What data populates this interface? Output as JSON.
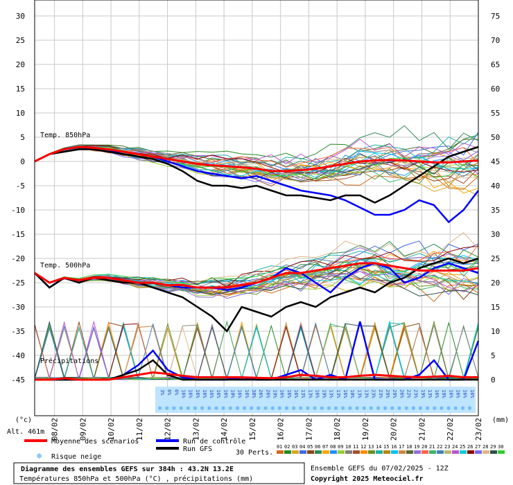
{
  "chart_data": {
    "type": "line",
    "title": "Diagramme des ensembles GEFS sur 384h : 43.2N 13.2E",
    "subtitle": "Températures 850hPa et 500hPa (°C) , précipitations (mm)",
    "run_info": "Ensemble GEFS du 07/02/2025 - 12Z",
    "copyright": "Copyright 2025 Meteociel.fr",
    "altitude": "Alt. 461m",
    "left_unit": "(°c)",
    "right_unit": "(mm)",
    "section_labels": {
      "t850": "Temp. 850hPa",
      "t500": "Temp. 500hPa",
      "precip": "Précipitations"
    },
    "y_left_ticks": [
      "30",
      "25",
      "20",
      "15",
      "10",
      "5",
      "0",
      "-5",
      "-10",
      "-15",
      "-20",
      "-25",
      "-30",
      "-35",
      "-40",
      "-45"
    ],
    "y_right_ticks": [
      "75",
      "70",
      "65",
      "60",
      "55",
      "50",
      "45",
      "40",
      "35",
      "30",
      "25",
      "20",
      "15",
      "10",
      "5",
      "0"
    ],
    "ylim": [
      -45,
      30
    ],
    "grid": true,
    "x_day_labels": [
      "08/02",
      "09/02",
      "10/02",
      "11/02",
      "12/02",
      "13/02",
      "14/02",
      "15/02",
      "16/02",
      "17/02",
      "18/02",
      "19/02",
      "20/02",
      "21/02",
      "22/02",
      "23/02"
    ],
    "snow_risk_pct": [
      "3%",
      "6%",
      "6%",
      "16%",
      "16%",
      "16%",
      "16%",
      "16%",
      "16%",
      "16%",
      "10%",
      "16%",
      "16%",
      "38%",
      "26%",
      "26%",
      "19%",
      "16%",
      "16%",
      "16%",
      "13%",
      "13%",
      "16%",
      "19%",
      "13%",
      "13%",
      "16%",
      "10%",
      "13%",
      "13%",
      "23%",
      "23%",
      "29%",
      "29%",
      "26%",
      "22%",
      "23%",
      "19%",
      "13%",
      "16%",
      "19%",
      "16%",
      "16%",
      "16%",
      "16%"
    ],
    "legend": {
      "mean": "Moyenne des scénarios",
      "control": "Run de contrôle",
      "gfs": "Run GFS",
      "snow": "Risque neige",
      "perts_label": "30 Perts.",
      "perts_ids": [
        "01",
        "02",
        "03",
        "04",
        "05",
        "06",
        "07",
        "08",
        "09",
        "10",
        "11",
        "12",
        "13",
        "14",
        "15",
        "16",
        "17",
        "18",
        "19",
        "20",
        "21",
        "22",
        "23",
        "24",
        "25",
        "26",
        "27",
        "28",
        "29",
        "30"
      ]
    },
    "colors": {
      "mean": "#ff0000",
      "control": "#0000ff",
      "gfs": "#000000",
      "snow": "#3aa0ff",
      "perts": [
        "#d2691e",
        "#228b22",
        "#daa520",
        "#4169e1",
        "#8b4513",
        "#2e8b57",
        "#ffa500",
        "#1e90ff",
        "#9acd32",
        "#808080",
        "#a0522d",
        "#ff8c00",
        "#6b8e23",
        "#20b2aa",
        "#b8860b",
        "#00bfff",
        "#cd853f",
        "#556b2f",
        "#9370db",
        "#ff6347",
        "#3cb371",
        "#4682b4",
        "#bdb76b",
        "#ba55d3",
        "#00ced1",
        "#8b0000",
        "#7b68ee",
        "#deb887",
        "#2f4f4f",
        "#32cd32"
      ]
    },
    "series": [
      {
        "name": "Moyenne des scénarios",
        "role": "t850",
        "values": [
          0,
          1.5,
          2.5,
          3,
          2.8,
          2.5,
          2,
          1.5,
          1,
          0.5,
          0,
          -0.5,
          -0.8,
          -1,
          -1.2,
          -1.5,
          -2,
          -2,
          -1.8,
          -1.5,
          -1,
          -0.5,
          0,
          0.2,
          0.3,
          0.2,
          0,
          -0.2,
          -0.2,
          0,
          0.2
        ]
      },
      {
        "name": "Run de contrôle",
        "role": "t850",
        "values": [
          0,
          1.5,
          2.5,
          3,
          2.5,
          2,
          2,
          1.5,
          1,
          0,
          -1,
          -2,
          -2.5,
          -3,
          -3.5,
          -3,
          -4,
          -5,
          -6,
          -6.5,
          -7,
          -8,
          -9.5,
          -11,
          -11,
          -10,
          -8,
          -9,
          -12.5,
          -10,
          -6
        ]
      },
      {
        "name": "Run GFS",
        "role": "t850",
        "values": [
          0,
          1.5,
          2,
          2.5,
          2.5,
          2,
          1.5,
          1,
          0.5,
          -0.5,
          -2,
          -4,
          -5,
          -5,
          -5.5,
          -5,
          -6,
          -7,
          -7,
          -7.5,
          -8,
          -7,
          -7,
          -8.5,
          -7,
          -5,
          -3,
          -1,
          1,
          2,
          3
        ]
      },
      {
        "name": "Moyenne des scénarios",
        "role": "t500",
        "values": [
          -23,
          -25,
          -24,
          -24.5,
          -24,
          -24,
          -24.5,
          -25,
          -25,
          -25.5,
          -25.5,
          -26,
          -26,
          -26,
          -25.5,
          -25,
          -24,
          -23,
          -23,
          -22.5,
          -22,
          -21.5,
          -21,
          -21,
          -21.5,
          -22,
          -22.5,
          -22.5,
          -22.5,
          -22.5,
          -22
        ]
      },
      {
        "name": "Run de contrôle",
        "role": "t500",
        "values": [
          -23,
          -26,
          -24,
          -24.5,
          -24,
          -24,
          -24.5,
          -25,
          -25,
          -25.5,
          -26,
          -26,
          -26,
          -26.5,
          -26,
          -25,
          -24,
          -22,
          -23,
          -25,
          -27,
          -24,
          -22,
          -21,
          -22,
          -25,
          -24,
          -22,
          -21,
          -22,
          -23
        ]
      },
      {
        "name": "Run GFS",
        "role": "t500",
        "values": [
          -23,
          -26,
          -24,
          -25,
          -24,
          -24.5,
          -25,
          -25,
          -26,
          -27,
          -28,
          -30,
          -32,
          -35,
          -30,
          -31,
          -32,
          -30,
          -29,
          -30,
          -28,
          -27,
          -26,
          -27,
          -25,
          -24,
          -22,
          -21,
          -20,
          -21,
          -20
        ]
      },
      {
        "name": "Moyenne des scénarios",
        "role": "precip",
        "values": [
          0,
          0,
          0.3,
          0,
          0,
          0,
          0.5,
          1,
          1.5,
          1.2,
          0.8,
          0.5,
          0.5,
          0.5,
          0.5,
          0.4,
          0.3,
          0.5,
          1,
          0.8,
          0.5,
          0.5,
          0.8,
          1,
          0.8,
          0.6,
          0.5,
          0.6,
          0.8,
          0.5,
          0.5
        ]
      },
      {
        "name": "Run de contrôle",
        "role": "precip",
        "values": [
          0,
          0,
          0,
          0,
          0,
          0,
          1,
          3,
          6,
          2,
          0.5,
          0,
          0,
          0,
          0.5,
          0,
          0,
          1,
          2,
          0,
          1,
          0,
          12,
          0,
          0,
          0,
          1,
          4,
          0,
          0,
          8
        ]
      },
      {
        "name": "Run GFS",
        "role": "precip",
        "values": [
          0,
          0,
          0,
          0,
          0,
          0,
          1,
          2,
          4,
          1,
          0,
          0,
          0,
          0,
          0,
          0,
          0,
          0,
          0,
          0,
          0,
          0,
          0,
          0,
          0,
          0,
          0,
          0,
          0,
          0,
          0
        ]
      }
    ]
  }
}
